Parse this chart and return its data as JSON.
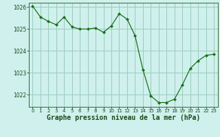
{
  "x": [
    0,
    1,
    2,
    3,
    4,
    5,
    6,
    7,
    8,
    9,
    10,
    11,
    12,
    13,
    14,
    15,
    16,
    17,
    18,
    19,
    20,
    21,
    22,
    23
  ],
  "y": [
    1026.05,
    1025.55,
    1025.35,
    1025.2,
    1025.55,
    1025.1,
    1025.0,
    1025.0,
    1025.05,
    1024.85,
    1025.15,
    1025.7,
    1025.45,
    1024.7,
    1023.15,
    1021.95,
    1021.65,
    1021.65,
    1021.8,
    1022.45,
    1023.2,
    1023.55,
    1023.8,
    1023.85
  ],
  "line_color": "#1a6e1a",
  "marker": "D",
  "marker_size": 2.2,
  "bg_color": "#cff0ec",
  "grid_color": "#99ccbb",
  "xlabel": "Graphe pression niveau de la mer (hPa)",
  "xlabel_color": "#1a4a1a",
  "tick_label_color": "#1a4a1a",
  "ylim": [
    1021.45,
    1026.2
  ],
  "xlim": [
    -0.5,
    23.5
  ],
  "yticks": [
    1022,
    1023,
    1024,
    1025,
    1026
  ],
  "xticks": [
    0,
    1,
    2,
    3,
    4,
    5,
    6,
    7,
    8,
    9,
    10,
    11,
    12,
    13,
    14,
    15,
    16,
    17,
    18,
    19,
    20,
    21,
    22,
    23
  ],
  "axis_color": "#336633",
  "xlabel_fontsize": 7.0,
  "xtick_fontsize": 5.0,
  "ytick_fontsize": 5.5
}
